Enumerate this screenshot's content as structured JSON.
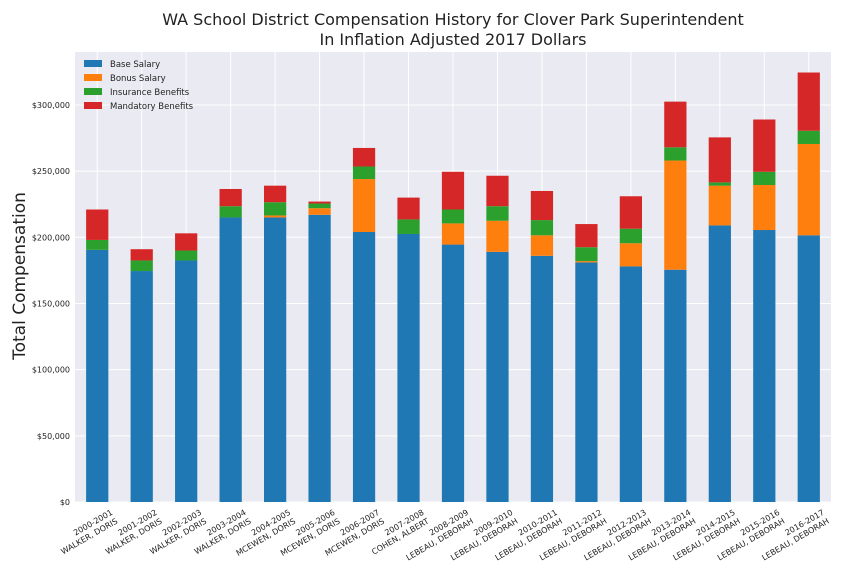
{
  "chart_data": {
    "type": "bar",
    "stacked": true,
    "title": "WA School District Compensation History for Clover Park Superintendent",
    "subtitle": "In Inflation Adjusted 2017 Dollars",
    "xlabel": "",
    "ylabel": "Total Compensation",
    "ylim": [
      0,
      340000
    ],
    "yticks": [
      0,
      50000,
      100000,
      150000,
      200000,
      250000,
      300000
    ],
    "ytick_labels": [
      "$0",
      "$50,000",
      "$100,000",
      "$150,000",
      "$200,000",
      "$250,000",
      "$300,000"
    ],
    "grid": true,
    "legend_position": "top-left",
    "categories": [
      {
        "year": "2000-2001",
        "name": "WALKER, DORIS"
      },
      {
        "year": "2001-2002",
        "name": "WALKER, DORIS"
      },
      {
        "year": "2002-2003",
        "name": "WALKER, DORIS"
      },
      {
        "year": "2003-2004",
        "name": "WALKER, DORIS"
      },
      {
        "year": "2004-2005",
        "name": "MCEWEN, DORIS"
      },
      {
        "year": "2005-2006",
        "name": "MCEWEN, DORIS"
      },
      {
        "year": "2006-2007",
        "name": "MCEWEN, DORIS"
      },
      {
        "year": "2007-2008",
        "name": "COHEN, ALBERT"
      },
      {
        "year": "2008-2009",
        "name": "LEBEAU, DEBORAH"
      },
      {
        "year": "2009-2010",
        "name": "LEBEAU, DEBORAH"
      },
      {
        "year": "2010-2011",
        "name": "LEBEAU, DEBORAH"
      },
      {
        "year": "2011-2012",
        "name": "LEBEAU, DEBORAH"
      },
      {
        "year": "2012-2013",
        "name": "LEBEAU, DEBORAH"
      },
      {
        "year": "2013-2014",
        "name": "LEBEAU, DEBORAH"
      },
      {
        "year": "2014-2015",
        "name": "LEBEAU, DEBORAH"
      },
      {
        "year": "2015-2016",
        "name": "LEBEAU, DEBORAH"
      },
      {
        "year": "2016-2017",
        "name": "LEBEAU, DEBORAH"
      }
    ],
    "series": [
      {
        "name": "Base Salary",
        "color": "#1f77b4",
        "values": [
          190500,
          174500,
          182500,
          215000,
          215000,
          217000,
          204000,
          202500,
          194500,
          189000,
          186000,
          181000,
          178000,
          175500,
          209000,
          205500,
          201500
        ]
      },
      {
        "name": "Bonus Salary",
        "color": "#ff7f0e",
        "values": [
          0,
          0,
          0,
          0,
          1500,
          5000,
          40000,
          0,
          16000,
          23500,
          15500,
          1000,
          17500,
          82500,
          30000,
          34000,
          69000
        ]
      },
      {
        "name": "Insurance Benefits",
        "color": "#2ca02c",
        "values": [
          7500,
          8000,
          7500,
          8500,
          10000,
          3500,
          9500,
          11000,
          10500,
          11000,
          11500,
          10500,
          11000,
          10000,
          2500,
          10000,
          10000
        ]
      },
      {
        "name": "Mandatory Benefits",
        "color": "#d62728",
        "values": [
          23000,
          8500,
          13000,
          13000,
          12500,
          1500,
          14000,
          16500,
          28500,
          23000,
          22000,
          17500,
          24500,
          34500,
          34000,
          39500,
          44000
        ]
      }
    ]
  }
}
